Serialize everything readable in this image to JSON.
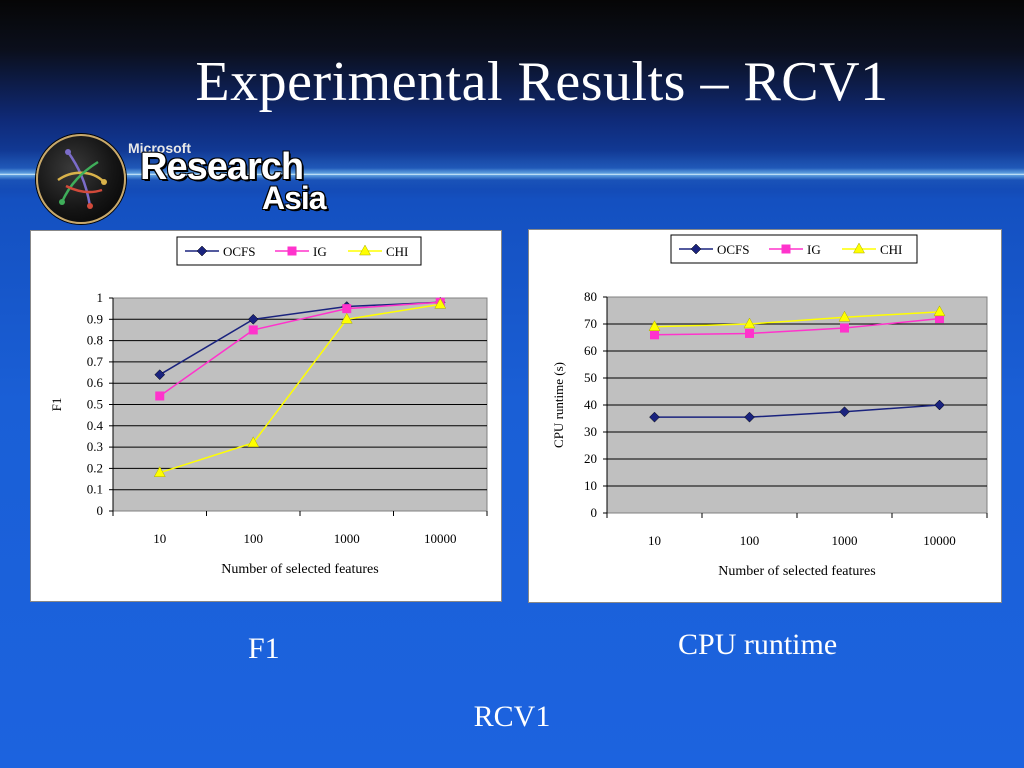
{
  "slide": {
    "title": "Experimental Results – RCV1",
    "logo": {
      "small": "Microsoft",
      "line1": "Research",
      "line2": "Asia"
    },
    "captions": {
      "left": "F1",
      "right": "CPU runtime",
      "bottom": "RCV1"
    }
  },
  "colors": {
    "OCFS": "#1a237e",
    "IG": "#ff33cc",
    "CHI": "#ffff00",
    "plot_bg": "#c0c0c0"
  },
  "chart_data": [
    {
      "type": "line",
      "title": "",
      "xlabel": "Number of selected features",
      "ylabel": "F1",
      "categories": [
        "10",
        "100",
        "1000",
        "10000"
      ],
      "ylim": [
        0,
        1
      ],
      "yticks": [
        "0",
        "0.1",
        "0.2",
        "0.3",
        "0.4",
        "0.5",
        "0.6",
        "0.7",
        "0.8",
        "0.9",
        "1"
      ],
      "grid": true,
      "legend": "top",
      "series": [
        {
          "name": "OCFS",
          "marker": "diamond",
          "values": [
            0.64,
            0.9,
            0.96,
            0.98
          ]
        },
        {
          "name": "IG",
          "marker": "square",
          "values": [
            0.54,
            0.85,
            0.95,
            0.98
          ]
        },
        {
          "name": "CHI",
          "marker": "triangle",
          "values": [
            0.18,
            0.32,
            0.9,
            0.97
          ]
        }
      ]
    },
    {
      "type": "line",
      "title": "",
      "xlabel": "Number of selected features",
      "ylabel": "CPU runtime (s)",
      "categories": [
        "10",
        "100",
        "1000",
        "10000"
      ],
      "ylim": [
        0,
        80
      ],
      "yticks": [
        "0",
        "10",
        "20",
        "30",
        "40",
        "50",
        "60",
        "70",
        "80"
      ],
      "grid": true,
      "legend": "top",
      "series": [
        {
          "name": "OCFS",
          "marker": "diamond",
          "values": [
            35.5,
            35.5,
            37.5,
            40
          ]
        },
        {
          "name": "IG",
          "marker": "square",
          "values": [
            66,
            66.5,
            68.5,
            72
          ]
        },
        {
          "name": "CHI",
          "marker": "triangle",
          "values": [
            69,
            70,
            72.5,
            74.5
          ]
        }
      ]
    }
  ]
}
